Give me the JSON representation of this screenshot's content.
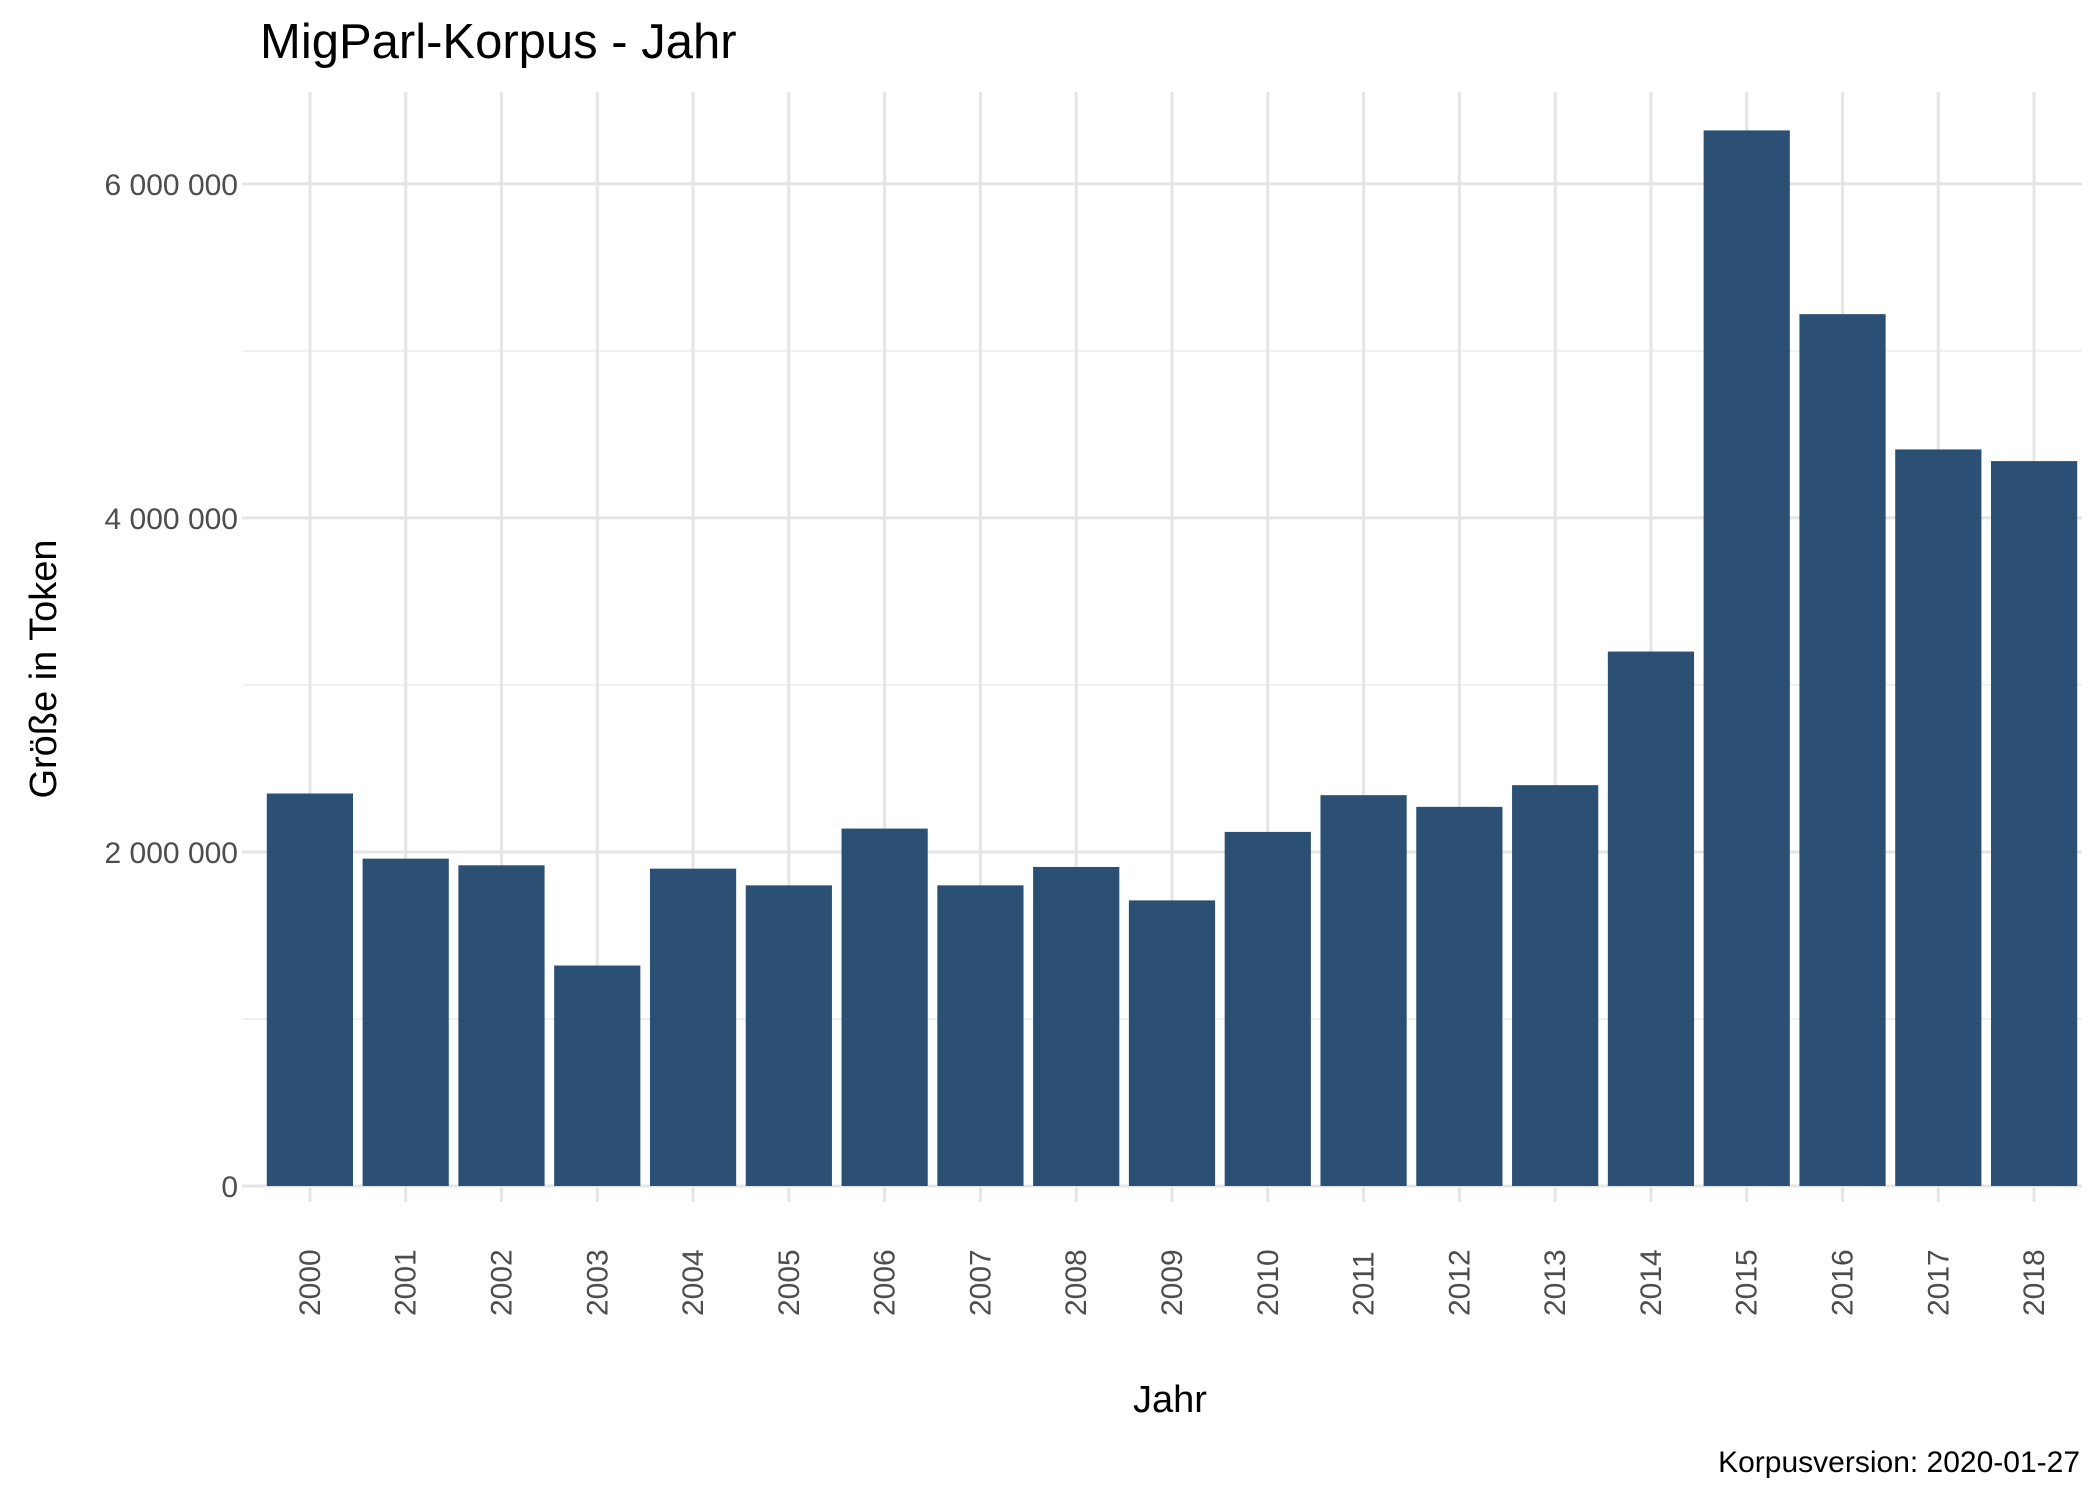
{
  "chart_data": {
    "type": "bar",
    "title": "MigParl-Korpus - Jahr",
    "xlabel": "Jahr",
    "ylabel": "Größe in Token",
    "caption": "Korpusversion: 2020-01-27",
    "categories": [
      "2000",
      "2001",
      "2002",
      "2003",
      "2004",
      "2005",
      "2006",
      "2007",
      "2008",
      "2009",
      "2010",
      "2011",
      "2012",
      "2013",
      "2014",
      "2015",
      "2016",
      "2017",
      "2018"
    ],
    "values": [
      2350000,
      1960000,
      1920000,
      1320000,
      1900000,
      1800000,
      2140000,
      1800000,
      1910000,
      1710000,
      2120000,
      2340000,
      2270000,
      2400000,
      3200000,
      6320000,
      5220000,
      4410000,
      4340000
    ],
    "ylim": [
      0,
      6550000
    ],
    "yticks": [
      0,
      2000000,
      4000000,
      6000000
    ],
    "ytick_labels": [
      "0",
      "2 000 000",
      "4 000 000",
      "6 000 000"
    ],
    "minor_yticks": [
      1000000,
      3000000,
      5000000
    ],
    "grid": true,
    "legend": "none",
    "colors": {
      "bar": "#2c5074",
      "grid_major": "#e5e5e5",
      "grid_minor": "#f0f0f0",
      "text": "#000000",
      "tick_text": "#4d4d4d"
    }
  }
}
